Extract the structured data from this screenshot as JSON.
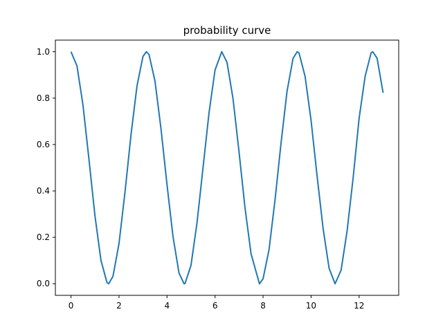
{
  "chart_data": {
    "type": "line",
    "title": "probability curve",
    "xlabel": "",
    "ylabel": "",
    "xlim": [
      -0.65,
      13.65
    ],
    "ylim": [
      -0.05,
      1.05
    ],
    "xticks": [
      0,
      2,
      4,
      6,
      8,
      10,
      12
    ],
    "yticks": [
      0.0,
      0.2,
      0.4,
      0.6,
      0.8,
      1.0
    ],
    "xtick_labels": [
      "0",
      "2",
      "4",
      "6",
      "8",
      "10",
      "12"
    ],
    "ytick_labels": [
      "0.0",
      "0.2",
      "0.4",
      "0.6",
      "0.8",
      "1.0"
    ],
    "grid": false,
    "series": [
      {
        "color": "#1f77b4",
        "x": [
          0,
          0.25,
          0.5,
          0.75,
          1.0,
          1.25,
          1.5,
          1.57,
          1.75,
          2.0,
          2.25,
          2.5,
          2.75,
          3.0,
          3.14,
          3.25,
          3.5,
          3.75,
          4.0,
          4.25,
          4.5,
          4.71,
          4.75,
          5.0,
          5.25,
          5.5,
          5.75,
          6.0,
          6.28,
          6.5,
          6.75,
          7.0,
          7.25,
          7.5,
          7.85,
          8.0,
          8.25,
          8.5,
          8.75,
          9.0,
          9.25,
          9.42,
          9.5,
          9.75,
          10.0,
          10.25,
          10.5,
          10.75,
          11.0,
          11.25,
          11.5,
          11.75,
          12.0,
          12.25,
          12.5,
          12.57,
          12.75,
          13.0
        ],
        "y": [
          1.0,
          0.939,
          0.77,
          0.535,
          0.292,
          0.1,
          0.005,
          0.0,
          0.032,
          0.173,
          0.395,
          0.642,
          0.853,
          0.98,
          1.0,
          0.988,
          0.873,
          0.667,
          0.427,
          0.203,
          0.046,
          0.0,
          0.001,
          0.08,
          0.263,
          0.5,
          0.737,
          0.921,
          1.0,
          0.954,
          0.797,
          0.568,
          0.326,
          0.129,
          0.0,
          0.021,
          0.147,
          0.362,
          0.607,
          0.83,
          0.971,
          1.0,
          0.994,
          0.894,
          0.704,
          0.465,
          0.239,
          0.067,
          0.0,
          0.058,
          0.227,
          0.454,
          0.712,
          0.893,
          0.995,
          1.0,
          0.972,
          0.823
        ]
      }
    ]
  }
}
